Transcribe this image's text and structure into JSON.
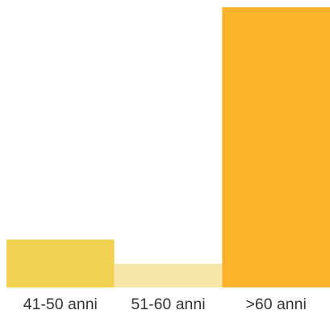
{
  "chart_data": {
    "type": "bar",
    "categories": [
      "41-50 anni",
      "51-60 anni",
      ">60 anni"
    ],
    "values": [
      5.9,
      2.9,
      34.5
    ],
    "colors": [
      "#f2d351",
      "#f7e5a8",
      "#fab32b"
    ],
    "title": "",
    "xlabel": "",
    "ylabel": "",
    "ylim": [
      0,
      34.5
    ],
    "grid": false,
    "legend": "none"
  }
}
